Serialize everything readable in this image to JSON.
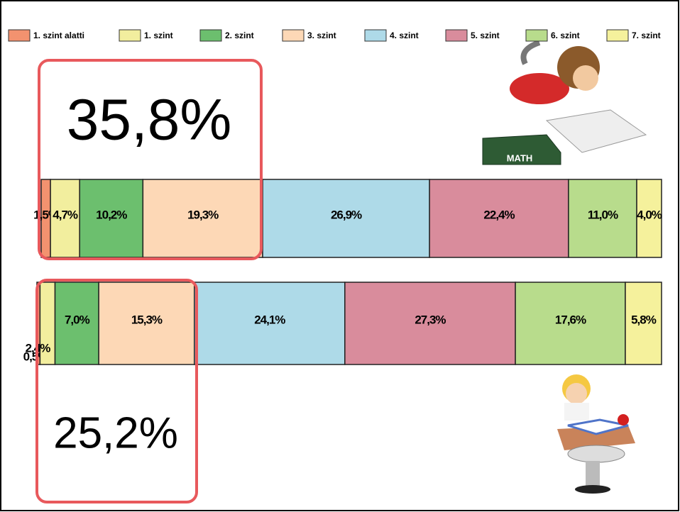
{
  "chart_data": {
    "type": "bar",
    "orientation": "horizontal",
    "stacked": true,
    "categories": [
      null,
      null
    ],
    "xlim": [
      0,
      100
    ],
    "series": [
      {
        "name": "1. szint alatti",
        "color": "#f3926f",
        "values": [
          1.5,
          0.5
        ],
        "value_labels": [
          "1,5%",
          "0,5%"
        ]
      },
      {
        "name": "1. szint",
        "color": "#f2ee9e",
        "values": [
          4.7,
          2.4
        ],
        "value_labels": [
          "4,7%",
          "2,4%"
        ]
      },
      {
        "name": "2. szint",
        "color": "#6cbf6e",
        "values": [
          10.2,
          7.0
        ],
        "value_labels": [
          "10,2%",
          "7,0%"
        ]
      },
      {
        "name": "3. szint",
        "color": "#fdd8b6",
        "values": [
          19.3,
          15.3
        ],
        "value_labels": [
          "19,3%",
          "15,3%"
        ]
      },
      {
        "name": "4. szint",
        "color": "#aedae8",
        "values": [
          26.9,
          24.1
        ],
        "value_labels": [
          "26,9%",
          "24,1%"
        ]
      },
      {
        "name": "5. szint",
        "color": "#d98c9c",
        "values": [
          22.4,
          27.3
        ],
        "value_labels": [
          "22,4%",
          "27,3%"
        ]
      },
      {
        "name": "6. szint",
        "color": "#b8dc8c",
        "values": [
          11.0,
          17.6
        ],
        "value_labels": [
          "11,0%",
          "17,6%"
        ]
      },
      {
        "name": "7. szint",
        "color": "#f5f19c",
        "values": [
          4.0,
          5.8
        ],
        "value_labels": [
          "4,0%",
          "5,8%"
        ]
      }
    ],
    "legend": "top",
    "annotations": [
      "35,8%",
      "25,2%"
    ]
  },
  "images": {
    "book_label": "MATH"
  }
}
